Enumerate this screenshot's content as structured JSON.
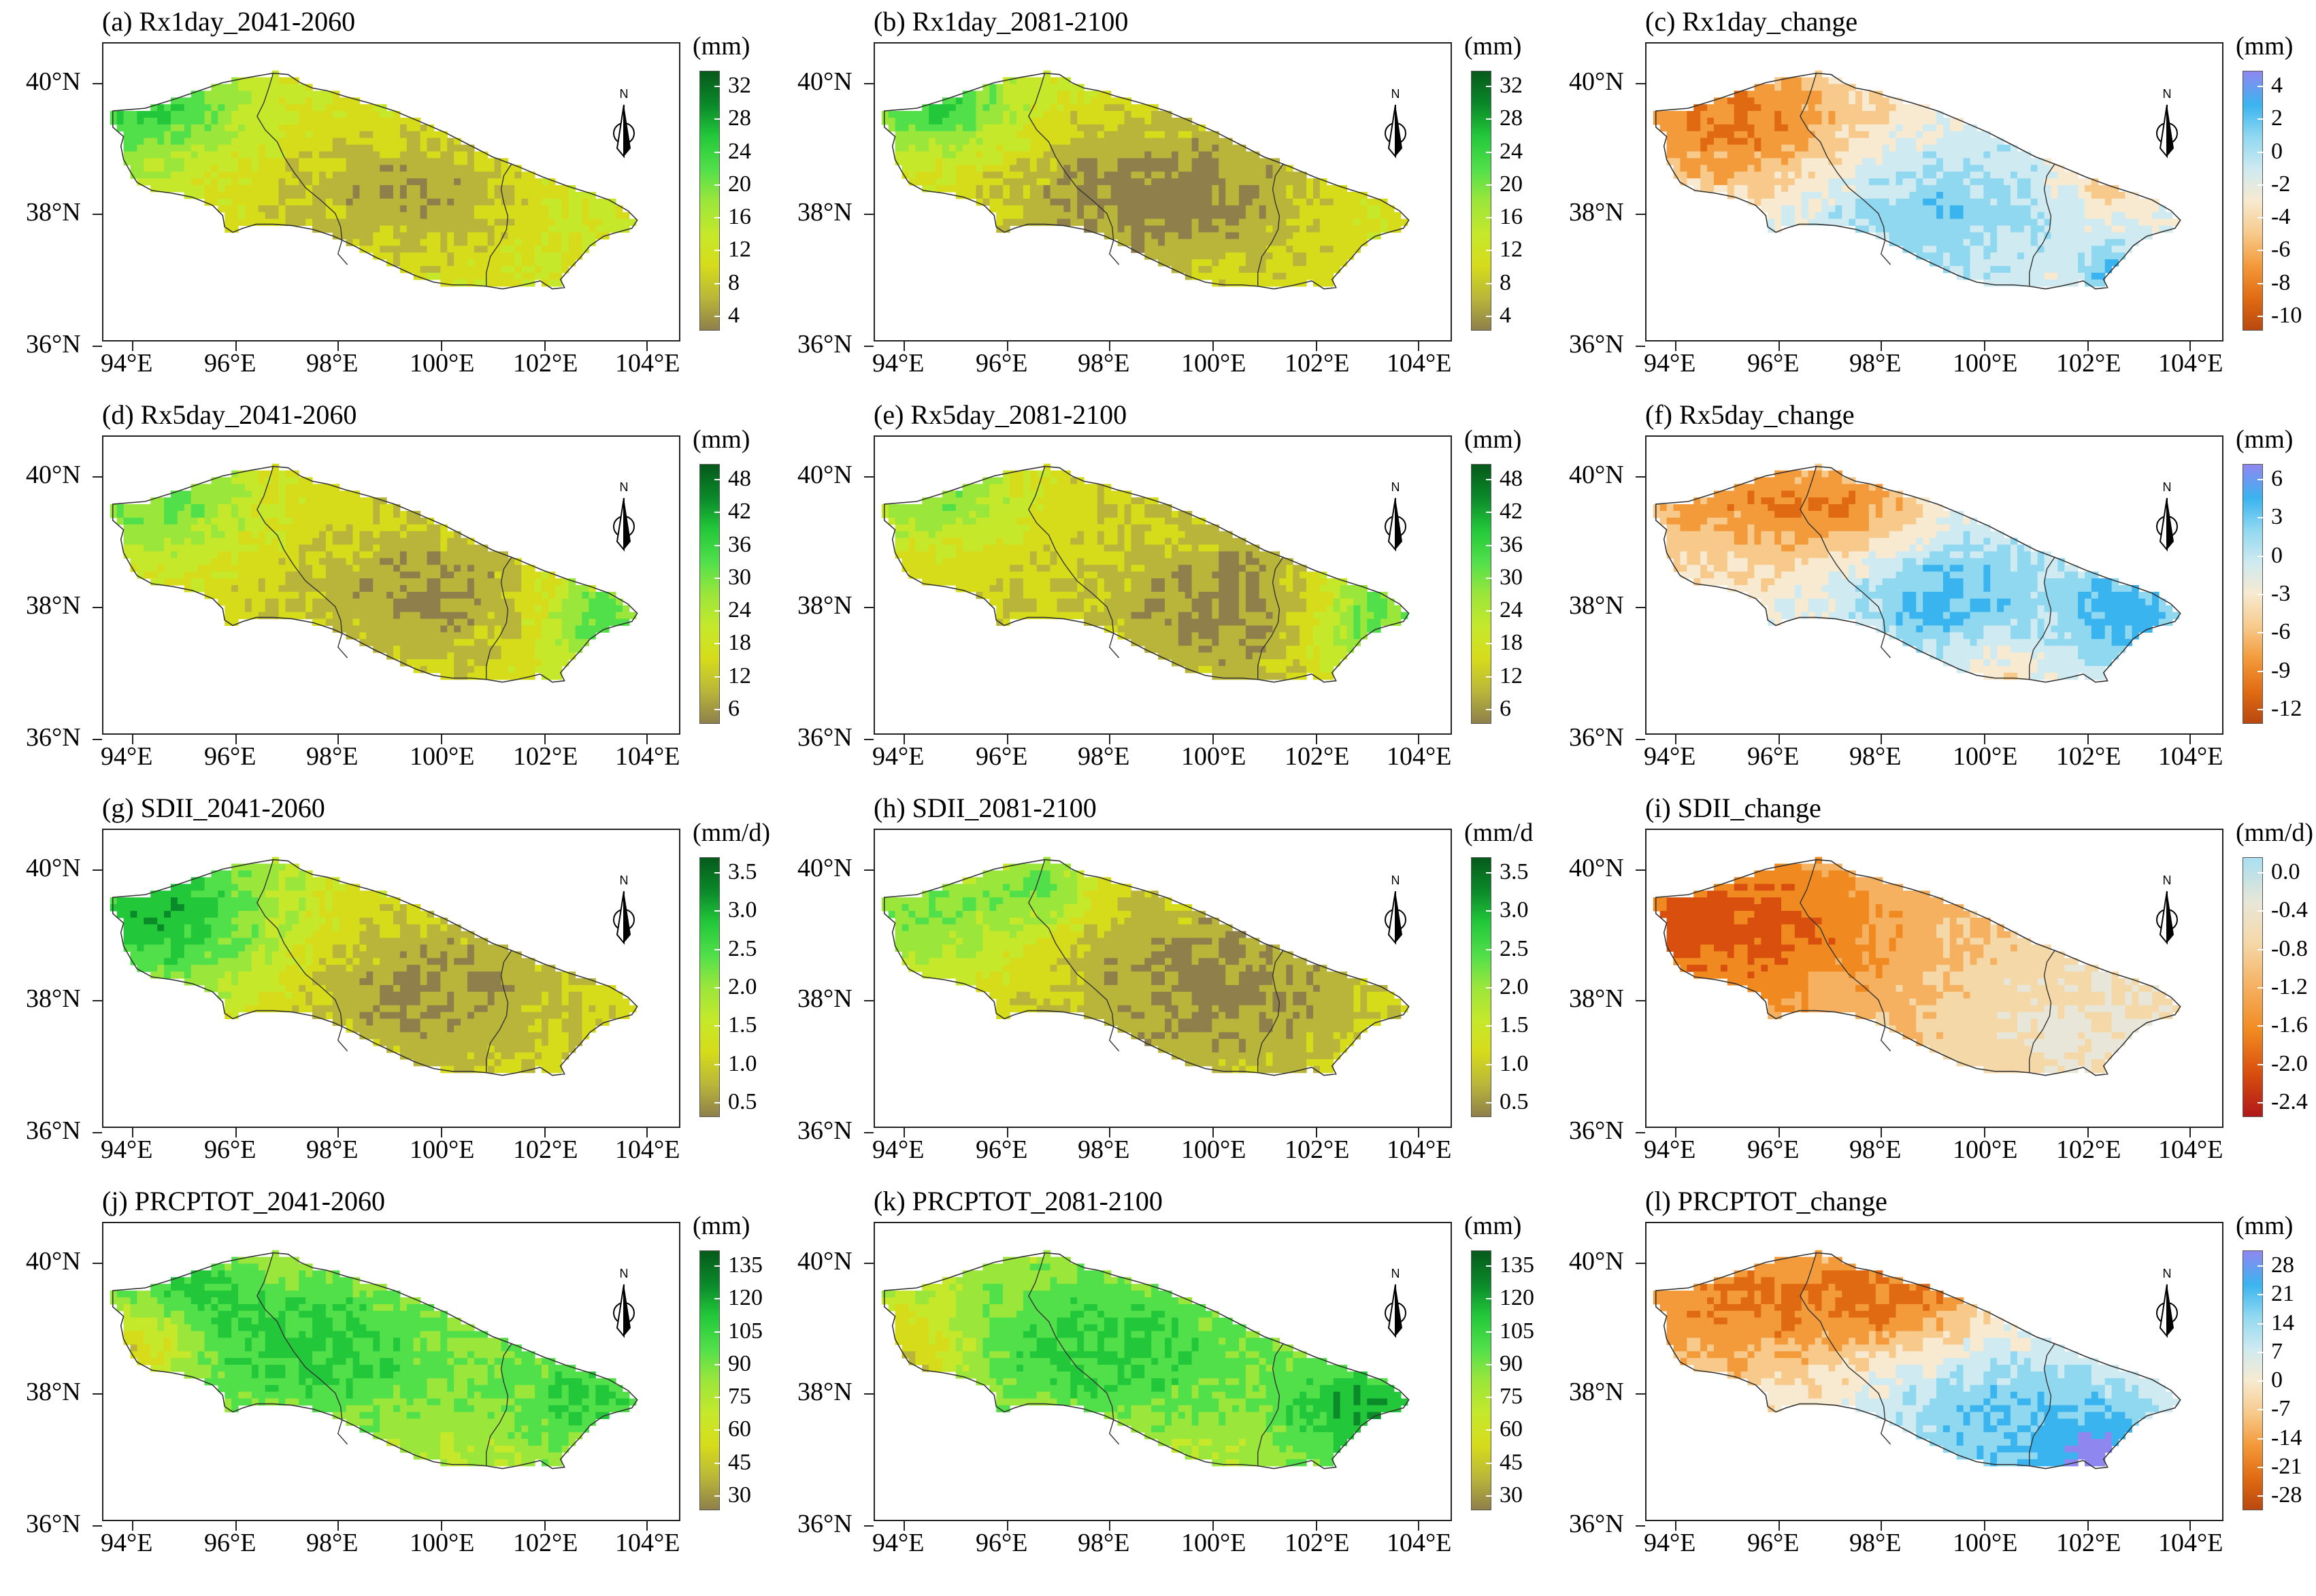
{
  "figure": {
    "x_ticks": [
      "94°E",
      "96°E",
      "98°E",
      "100°E",
      "102°E",
      "104°E"
    ],
    "y_ticks": [
      "40°N",
      "38°N",
      "36°N"
    ],
    "north_label": "N",
    "palettes": {
      "level": [
        "#8f7f4a",
        "#b9b53a",
        "#d6dc1a",
        "#c6e82a",
        "#9ae63a",
        "#52e04a",
        "#22c83a",
        "#0b8a2a",
        "#055a1a"
      ],
      "change": [
        "#b8480f",
        "#e06a12",
        "#f39a3a",
        "#f7c98a",
        "#f7ead0",
        "#cfeaf0",
        "#8fd8f0",
        "#3ab4ef",
        "#8f87f0"
      ],
      "change_sdii": [
        "#b01818",
        "#d9500e",
        "#f08a20",
        "#f5b060",
        "#f5d8a8",
        "#e8e6d8",
        "#a8dff0"
      ]
    }
  },
  "panels": [
    {
      "title": "(a) Rx1day_2041-2060",
      "unit": "(mm)",
      "type": "level",
      "ticks": [
        "32",
        "28",
        "24",
        "20",
        "16",
        "12",
        "8",
        "4"
      ],
      "pattern": "rx1"
    },
    {
      "title": "(b) Rx1day_2081-2100",
      "unit": "(mm)",
      "type": "level",
      "ticks": [
        "32",
        "28",
        "24",
        "20",
        "16",
        "12",
        "8",
        "4"
      ],
      "pattern": "rx1b"
    },
    {
      "title": "(c) Rx1day_change",
      "unit": "(mm)",
      "type": "change",
      "ticks": [
        "4",
        "2",
        "0",
        "-2",
        "-4",
        "-6",
        "-8",
        "-10"
      ],
      "pattern": "rx1c"
    },
    {
      "title": "(d) Rx5day_2041-2060",
      "unit": "(mm)",
      "type": "level",
      "ticks": [
        "48",
        "42",
        "36",
        "30",
        "24",
        "18",
        "12",
        "6"
      ],
      "pattern": "rx5"
    },
    {
      "title": "(e) Rx5day_2081-2100",
      "unit": "(mm)",
      "type": "level",
      "ticks": [
        "48",
        "42",
        "36",
        "30",
        "24",
        "18",
        "12",
        "6"
      ],
      "pattern": "rx5b"
    },
    {
      "title": "(f) Rx5day_change",
      "unit": "(mm)",
      "type": "change",
      "ticks": [
        "6",
        "3",
        "0",
        "-3",
        "-6",
        "-9",
        "-12"
      ],
      "pattern": "rx5c"
    },
    {
      "title": "(g) SDII_2041-2060",
      "unit": "(mm/d)",
      "type": "level",
      "ticks": [
        "3.5",
        "3.0",
        "2.5",
        "2.0",
        "1.5",
        "1.0",
        "0.5"
      ],
      "pattern": "sdii"
    },
    {
      "title": "(h) SDII_2081-2100",
      "unit": "(mm/d",
      "type": "level",
      "ticks": [
        "3.5",
        "3.0",
        "2.5",
        "2.0",
        "1.5",
        "1.0",
        "0.5"
      ],
      "pattern": "sdiib"
    },
    {
      "title": "(i) SDII_change",
      "unit": "(mm/d)",
      "type": "change_sdii",
      "ticks": [
        "0.0",
        "-0.4",
        "-0.8",
        "-1.2",
        "-1.6",
        "-2.0",
        "-2.4"
      ],
      "pattern": "sdiic"
    },
    {
      "title": "(j) PRCPTOT_2041-2060",
      "unit": "(mm)",
      "type": "level",
      "ticks": [
        "135",
        "120",
        "105",
        "90",
        "75",
        "60",
        "45",
        "30"
      ],
      "pattern": "prcp"
    },
    {
      "title": "(k) PRCPTOT_2081-2100",
      "unit": "(mm)",
      "type": "level",
      "ticks": [
        "135",
        "120",
        "105",
        "90",
        "75",
        "60",
        "45",
        "30"
      ],
      "pattern": "prcpb"
    },
    {
      "title": "(l) PRCPTOT_change",
      "unit": "(mm)",
      "type": "change",
      "ticks": [
        "28",
        "21",
        "14",
        "7",
        "0",
        "-7",
        "-14",
        "-21",
        "-28"
      ],
      "pattern": "prcpc"
    }
  ]
}
